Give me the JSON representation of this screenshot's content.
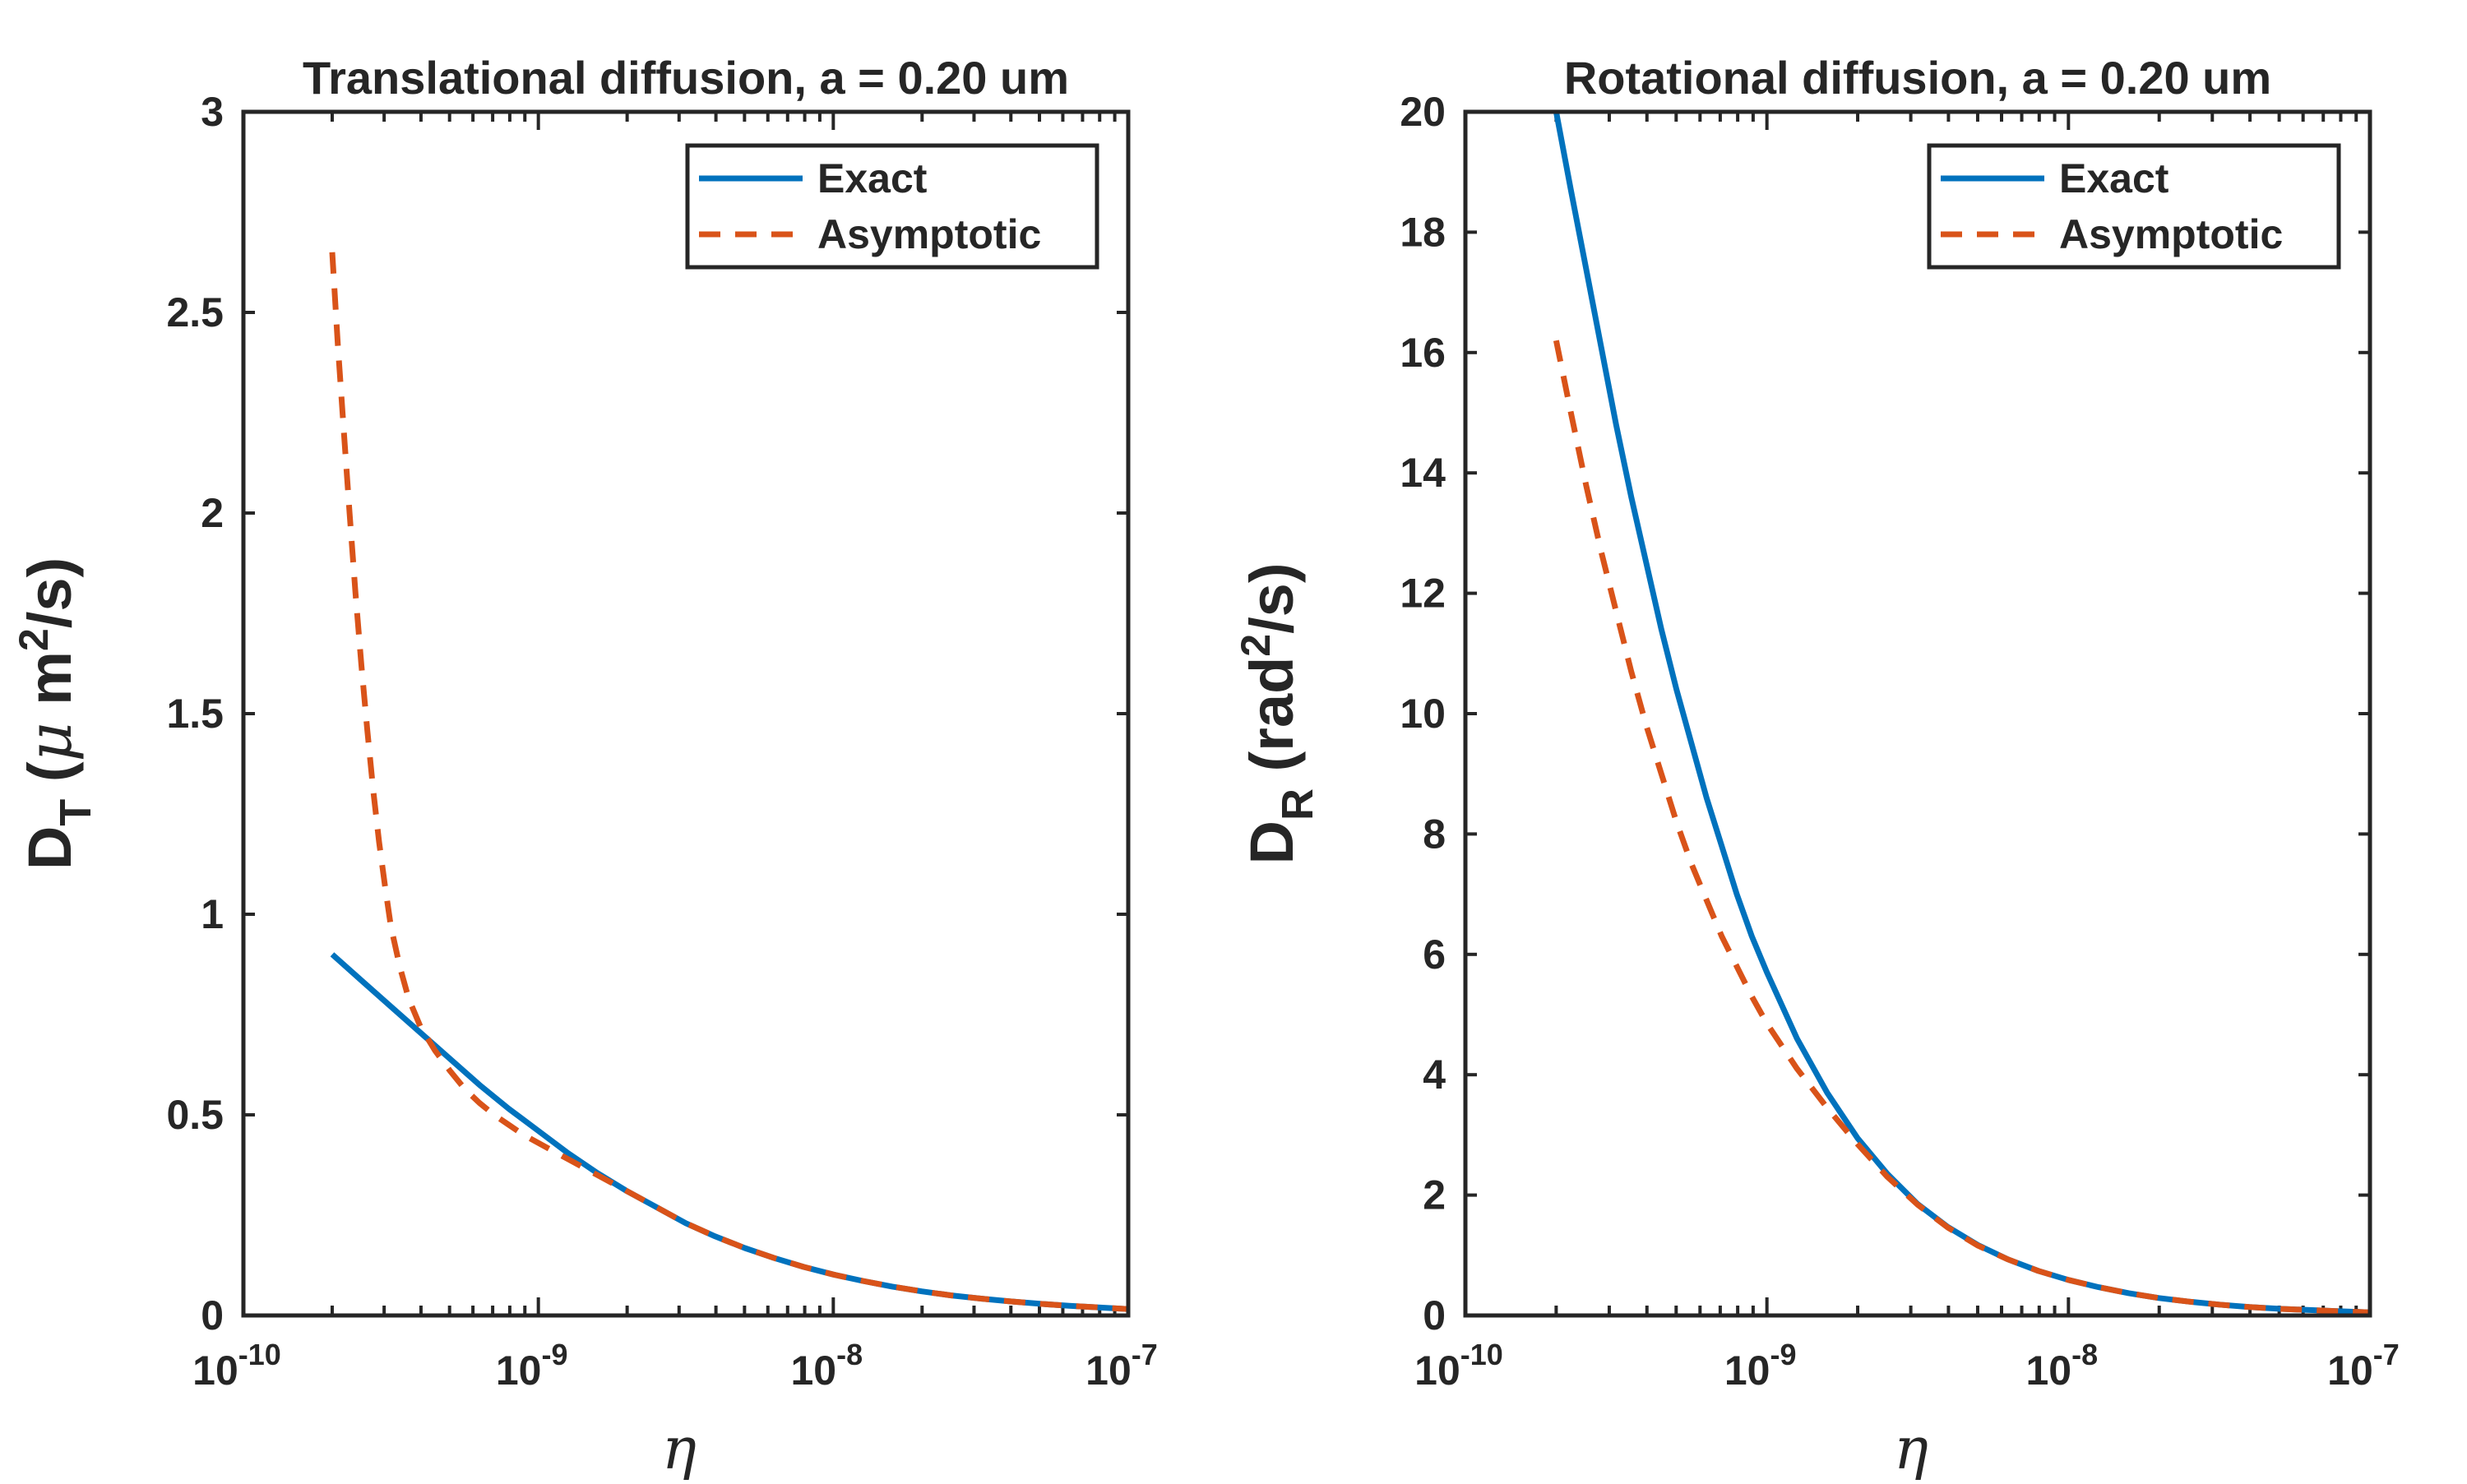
{
  "chart_data": [
    {
      "type": "line",
      "title": "Translational diffusion, a = 0.20 um",
      "xscale": "log",
      "xlim_exp": [
        -10,
        -7
      ],
      "xticks": [
        {
          "base": "10",
          "exp": "-10"
        },
        {
          "base": "10",
          "exp": "-9"
        },
        {
          "base": "10",
          "exp": "-8"
        },
        {
          "base": "10",
          "exp": "-7"
        }
      ],
      "xlabel": "η",
      "ylabel": {
        "main": "D",
        "sub": "T",
        "open": " (",
        "mu": "μ",
        "unit": " m",
        "sup": "2",
        "tail": "/s)"
      },
      "ylim": [
        0,
        3
      ],
      "yticks": [
        "0",
        "0.5",
        "1",
        "1.5",
        "2",
        "2.5",
        "3"
      ],
      "legend": {
        "position": "top-right",
        "entries": [
          "Exact",
          "Asymptotic"
        ]
      },
      "series": [
        {
          "name": "Exact",
          "color": "#0072BD",
          "style": "solid",
          "log10_x": [
            -9.699,
            -9.6,
            -9.5,
            -9.4,
            -9.3,
            -9.2,
            -9.1,
            -9.0,
            -8.9,
            -8.8,
            -8.7,
            -8.6,
            -8.5,
            -8.4,
            -8.3,
            -8.2,
            -8.1,
            -8.0,
            -7.9,
            -7.8,
            -7.7,
            -7.6,
            -7.5,
            -7.4,
            -7.3,
            -7.2,
            -7.1,
            -7.0
          ],
          "y": [
            0.9,
            0.835,
            0.77,
            0.705,
            0.64,
            0.575,
            0.515,
            0.46,
            0.405,
            0.355,
            0.31,
            0.27,
            0.23,
            0.197,
            0.168,
            0.143,
            0.121,
            0.102,
            0.086,
            0.072,
            0.06,
            0.05,
            0.042,
            0.035,
            0.029,
            0.024,
            0.02,
            0.016
          ]
        },
        {
          "name": "Asymptotic",
          "color": "#D95319",
          "style": "dashed",
          "log10_x": [
            -9.699,
            -9.68,
            -9.66,
            -9.64,
            -9.62,
            -9.6,
            -9.58,
            -9.56,
            -9.54,
            -9.52,
            -9.5,
            -9.47,
            -9.44,
            -9.4,
            -9.35,
            -9.3,
            -9.25,
            -9.2,
            -9.15,
            -9.1,
            -9.05,
            -9.0,
            -8.9,
            -8.8,
            -8.7,
            -8.6,
            -8.5,
            -8.4,
            -8.3,
            -8.2,
            -8.1,
            -8.0,
            -7.9,
            -7.8,
            -7.7,
            -7.6,
            -7.5,
            -7.4,
            -7.3,
            -7.2,
            -7.1,
            -7.0
          ],
          "y": [
            2.65,
            2.42,
            2.21,
            2.0,
            1.8,
            1.62,
            1.46,
            1.31,
            1.18,
            1.07,
            0.97,
            0.87,
            0.79,
            0.72,
            0.66,
            0.61,
            0.565,
            0.53,
            0.5,
            0.475,
            0.45,
            0.43,
            0.39,
            0.35,
            0.31,
            0.27,
            0.23,
            0.197,
            0.168,
            0.143,
            0.121,
            0.102,
            0.086,
            0.072,
            0.06,
            0.05,
            0.042,
            0.035,
            0.029,
            0.024,
            0.02,
            0.016
          ]
        }
      ]
    },
    {
      "type": "line",
      "title": "Rotational diffusion, a = 0.20 um",
      "xscale": "log",
      "xlim_exp": [
        -10,
        -7
      ],
      "xticks": [
        {
          "base": "10",
          "exp": "-10"
        },
        {
          "base": "10",
          "exp": "-9"
        },
        {
          "base": "10",
          "exp": "-8"
        },
        {
          "base": "10",
          "exp": "-7"
        }
      ],
      "xlabel": "η",
      "ylabel": {
        "main": "D",
        "sub": "R",
        "open": " (rad",
        "sup": "2",
        "tail": "/s)"
      },
      "ylim": [
        0,
        20
      ],
      "yticks": [
        "0",
        "2",
        "4",
        "6",
        "8",
        "10",
        "12",
        "14",
        "16",
        "18",
        "20"
      ],
      "legend": {
        "position": "top-right",
        "entries": [
          "Exact",
          "Asymptotic"
        ]
      },
      "series": [
        {
          "name": "Exact",
          "color": "#0072BD",
          "style": "solid",
          "log10_x": [
            -9.699,
            -9.65,
            -9.6,
            -9.55,
            -9.5,
            -9.45,
            -9.4,
            -9.35,
            -9.3,
            -9.25,
            -9.2,
            -9.15,
            -9.1,
            -9.05,
            -9.0,
            -8.9,
            -8.8,
            -8.7,
            -8.6,
            -8.5,
            -8.4,
            -8.3,
            -8.2,
            -8.1,
            -8.0,
            -7.9,
            -7.8,
            -7.7,
            -7.6,
            -7.5,
            -7.4,
            -7.3,
            -7.2,
            -7.1,
            -7.0
          ],
          "y": [
            20.0,
            18.7,
            17.4,
            16.1,
            14.8,
            13.6,
            12.5,
            11.4,
            10.4,
            9.5,
            8.6,
            7.8,
            7.0,
            6.3,
            5.7,
            4.6,
            3.7,
            2.95,
            2.35,
            1.85,
            1.47,
            1.17,
            0.93,
            0.74,
            0.59,
            0.47,
            0.37,
            0.29,
            0.23,
            0.18,
            0.14,
            0.11,
            0.09,
            0.07,
            0.05
          ]
        },
        {
          "name": "Asymptotic",
          "color": "#D95319",
          "style": "dashed",
          "log10_x": [
            -9.699,
            -9.65,
            -9.6,
            -9.55,
            -9.5,
            -9.45,
            -9.4,
            -9.35,
            -9.3,
            -9.25,
            -9.2,
            -9.15,
            -9.1,
            -9.05,
            -9.0,
            -8.9,
            -8.8,
            -8.7,
            -8.6,
            -8.5,
            -8.4,
            -8.3,
            -8.2,
            -8.1,
            -8.0,
            -7.9,
            -7.8,
            -7.7,
            -7.6,
            -7.5,
            -7.4,
            -7.3,
            -7.2,
            -7.1,
            -7.0
          ],
          "y": [
            16.2,
            15.0,
            13.8,
            12.7,
            11.7,
            10.7,
            9.8,
            9.0,
            8.2,
            7.5,
            6.9,
            6.3,
            5.8,
            5.3,
            4.85,
            4.1,
            3.45,
            2.85,
            2.3,
            1.84,
            1.46,
            1.16,
            0.93,
            0.74,
            0.59,
            0.47,
            0.37,
            0.29,
            0.23,
            0.18,
            0.14,
            0.11,
            0.09,
            0.07,
            0.05
          ]
        }
      ]
    }
  ]
}
